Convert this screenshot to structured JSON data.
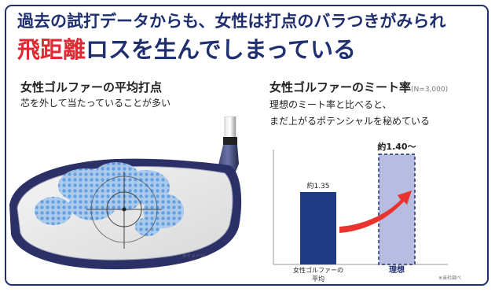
{
  "header": {
    "line1": "過去の試打データからも、女性は打点のバラつきがみられ",
    "line2_highlight": "飛距離",
    "line2_rest": "ロスを生んでしまっている"
  },
  "left_panel": {
    "title": "女性ゴルファーの平均打点",
    "subtitle": "芯を外して当たっていることが多い",
    "image_note": "※イメージ"
  },
  "right_panel": {
    "title": "女性ゴルファーのミート率",
    "sample_note": "(N=3,000)",
    "subtitle_line1": "理想のミート率と比べると、",
    "subtitle_line2": "まだ上がるポテンシャルを秘めている",
    "source_note": "※当社調べ"
  },
  "chart_data": {
    "type": "bar",
    "categories": [
      "女性ゴルファーの平均",
      "理想"
    ],
    "category_lines": [
      [
        "女性ゴルファーの",
        "平均"
      ],
      [
        "理想"
      ]
    ],
    "values": [
      1.35,
      1.4
    ],
    "data_labels": [
      "約1.35",
      "約1.40～"
    ],
    "colors": {
      "actual": "#1f3b86",
      "ideal": "#b7bce0",
      "ideal_border": "#1f2f70",
      "arrow": "#e8332e"
    }
  },
  "colors": {
    "navy": "#1f2f70",
    "red": "#dd2a33"
  }
}
